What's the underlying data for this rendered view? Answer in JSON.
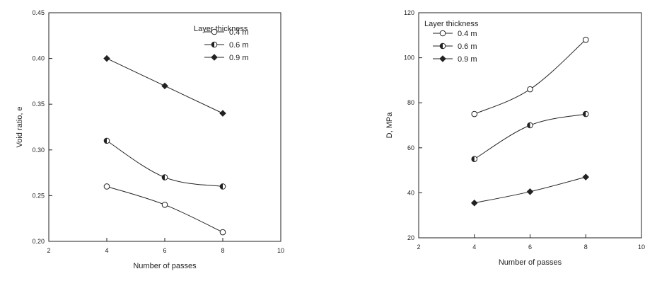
{
  "chart_data": [
    {
      "type": "line",
      "title": "",
      "xlabel": "Number of passes",
      "ylabel": "Void ratio, e",
      "xlim": [
        2,
        10
      ],
      "ylim": [
        0.2,
        0.45
      ],
      "xticks": [
        "2",
        "4",
        "6",
        "8",
        "10"
      ],
      "yticks": [
        "0.20",
        "0.25",
        "0.30",
        "0.35",
        "0.40",
        "0.45"
      ],
      "legend_title": "Layer thickness",
      "legend_position": "top-right",
      "grid": false,
      "x": [
        4,
        6,
        8
      ],
      "series": [
        {
          "name": "0.4 m",
          "marker": "open-circle",
          "values": [
            0.26,
            0.24,
            0.21
          ]
        },
        {
          "name": "0.6 m",
          "marker": "half-filled-circle",
          "values": [
            0.31,
            0.27,
            0.26
          ]
        },
        {
          "name": "0.9 m",
          "marker": "filled-diamond",
          "values": [
            0.4,
            0.37,
            0.34
          ]
        }
      ]
    },
    {
      "type": "line",
      "title": "",
      "xlabel": "Number of passes",
      "ylabel": "D, MPa",
      "xlim": [
        2,
        10
      ],
      "ylim": [
        20,
        120
      ],
      "xticks": [
        "2",
        "4",
        "6",
        "8",
        "10"
      ],
      "yticks": [
        "20",
        "40",
        "60",
        "80",
        "100",
        "120"
      ],
      "legend_title": "Layer thickness",
      "legend_position": "top-left",
      "grid": false,
      "x": [
        4,
        6,
        8
      ],
      "series": [
        {
          "name": "0.4 m",
          "marker": "open-circle",
          "values": [
            75,
            86,
            108
          ]
        },
        {
          "name": "0.6 m",
          "marker": "half-filled-circle",
          "values": [
            55,
            70,
            75
          ]
        },
        {
          "name": "0.9 m",
          "marker": "filled-diamond",
          "values": [
            35.5,
            40.5,
            47
          ]
        }
      ]
    }
  ]
}
